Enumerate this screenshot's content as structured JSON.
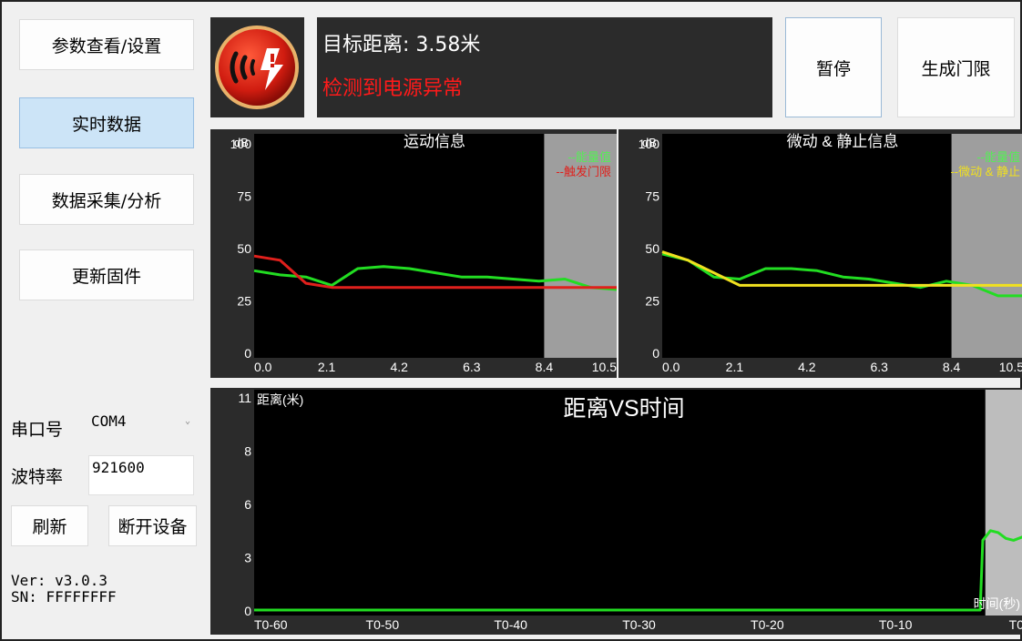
{
  "nav": {
    "params": "参数查看/设置",
    "realtime": "实时数据",
    "collect": "数据采集/分析",
    "firmware": "更新固件"
  },
  "serial": {
    "port_label": "串口号",
    "port_value": "COM4",
    "baud_label": "波特率",
    "baud_value": "921600",
    "refresh": "刷新",
    "disconnect": "断开设备"
  },
  "info": {
    "version": "Ver: v3.0.3",
    "sn": "SN: FFFFFFFF"
  },
  "status": {
    "target": "目标距离: 3.58米",
    "alert": "检测到电源异常"
  },
  "buttons": {
    "pause": "暂停",
    "generate": "生成门限"
  },
  "colors": {
    "panel_bg": "#2b2b2b",
    "plot_bg": "#000000",
    "energy": "#22dd22",
    "trigger": "#e0201c",
    "micro": "#f0e020",
    "alert_text": "#ff1a1a",
    "shade": "#9e9e9e"
  },
  "icons": {
    "logo": "radar-power-warning-icon"
  },
  "chart_data": [
    {
      "type": "line",
      "title": "运动信息",
      "ylabel": "dB",
      "ylim": [
        0,
        100
      ],
      "xlim": [
        0,
        10.5
      ],
      "x_ticks": [
        "0.0",
        "2.1",
        "4.2",
        "6.3",
        "8.4",
        "10.5"
      ],
      "y_ticks": [
        "100",
        "75",
        "50",
        "25",
        "0"
      ],
      "shaded_from": 8.4,
      "legend_placement": "top-right",
      "series": [
        {
          "name": "--能量值",
          "color": "#22dd22",
          "x": [
            0,
            0.75,
            1.5,
            2.25,
            3.0,
            3.75,
            4.5,
            5.25,
            6.0,
            6.75,
            7.5,
            8.25,
            9.0,
            9.75,
            10.5
          ],
          "y": [
            39,
            37,
            36,
            32,
            40,
            41,
            40,
            38,
            36,
            36,
            35,
            34,
            35,
            31,
            30
          ]
        },
        {
          "name": "--触发门限",
          "color": "#e0201c",
          "x": [
            0,
            0.75,
            1.5,
            2.25,
            3.0,
            3.75,
            4.5,
            5.25,
            6.0,
            6.75,
            7.5,
            8.25,
            9.0,
            9.75,
            10.5
          ],
          "y": [
            46,
            44,
            33,
            31,
            31,
            31,
            31,
            31,
            31,
            31,
            31,
            31,
            31,
            31,
            31
          ]
        }
      ]
    },
    {
      "type": "line",
      "title": "微动 & 静止信息",
      "ylabel": "dB",
      "ylim": [
        0,
        100
      ],
      "xlim": [
        0,
        10.5
      ],
      "x_ticks": [
        "0.0",
        "2.1",
        "4.2",
        "6.3",
        "8.4",
        "10.5"
      ],
      "y_ticks": [
        "100",
        "75",
        "50",
        "25",
        "0"
      ],
      "shaded_from": 8.4,
      "legend_placement": "top-right",
      "series": [
        {
          "name": "--能量值",
          "color": "#22dd22",
          "x": [
            0,
            0.75,
            1.5,
            2.25,
            3.0,
            3.75,
            4.5,
            5.25,
            6.0,
            6.75,
            7.5,
            8.25,
            9.0,
            9.75,
            10.5
          ],
          "y": [
            47,
            44,
            36,
            35,
            40,
            40,
            39,
            36,
            35,
            33,
            31,
            34,
            32,
            27,
            27
          ]
        },
        {
          "name": "--微动 & 静止",
          "color": "#f0e020",
          "x": [
            0,
            0.75,
            1.5,
            2.25,
            3.0,
            3.75,
            4.5,
            5.25,
            6.0,
            6.75,
            7.5,
            8.25,
            9.0,
            9.75,
            10.5
          ],
          "y": [
            48,
            44,
            38,
            32,
            32,
            32,
            32,
            32,
            32,
            32,
            32,
            32,
            32,
            32,
            32
          ]
        }
      ]
    },
    {
      "type": "line",
      "title": "距离VS时间",
      "ylabel": "距离(米)",
      "xlabel": "时间(秒)",
      "ylim": [
        0,
        11
      ],
      "xlim": [
        -60,
        0
      ],
      "x_ticks": [
        "T0-60",
        "T0-50",
        "T0-40",
        "T0-30",
        "T0-20",
        "T0-10",
        "T0"
      ],
      "y_ticks": [
        "11",
        "8",
        "6",
        "3",
        "0"
      ],
      "shaded_from": -3,
      "series": [
        {
          "color": "#22dd22",
          "x": [
            -60,
            -55,
            -50,
            -45,
            -40,
            -35,
            -30,
            -25,
            -20,
            -15,
            -10,
            -5,
            -3.4,
            -3.2,
            -2.6,
            -2.0,
            -1.4,
            -0.8,
            0
          ],
          "y": [
            0,
            0,
            0,
            0,
            0,
            0,
            0,
            0,
            0,
            0,
            0,
            0,
            0,
            3.6,
            4.1,
            4.0,
            3.7,
            3.6,
            3.8
          ]
        }
      ]
    }
  ]
}
